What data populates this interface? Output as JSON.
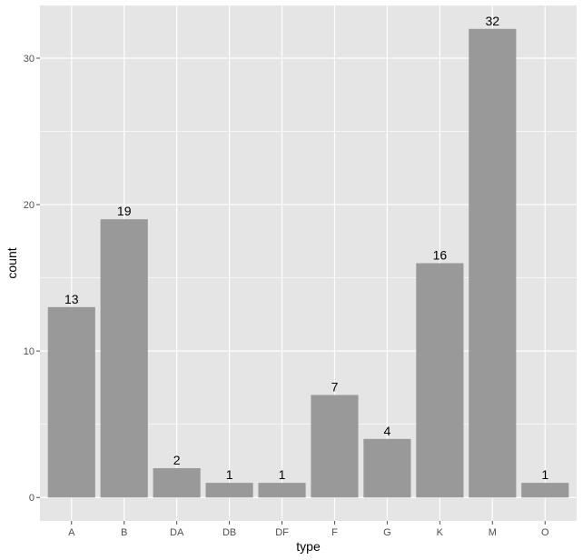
{
  "chart_data": {
    "type": "bar",
    "categories": [
      "A",
      "B",
      "DA",
      "DB",
      "DF",
      "F",
      "G",
      "K",
      "M",
      "O"
    ],
    "values": [
      13,
      19,
      2,
      1,
      1,
      7,
      4,
      16,
      32,
      1
    ],
    "data_labels": [
      "13",
      "19",
      "2",
      "1",
      "1",
      "7",
      "4",
      "16",
      "32",
      "1"
    ],
    "title": "",
    "xlabel": "type",
    "ylabel": "count",
    "ylim": [
      -1.6,
      33.6
    ],
    "yticks": [
      0,
      10,
      20,
      30
    ],
    "ytick_labels": [
      "0",
      "10",
      "20",
      "30"
    ],
    "grid": true,
    "colors": {
      "panel": "#e5e5e5",
      "grid_major": "#ffffff",
      "bar": "#999999",
      "tick": "#4d4d4d",
      "text": "#000000"
    }
  }
}
